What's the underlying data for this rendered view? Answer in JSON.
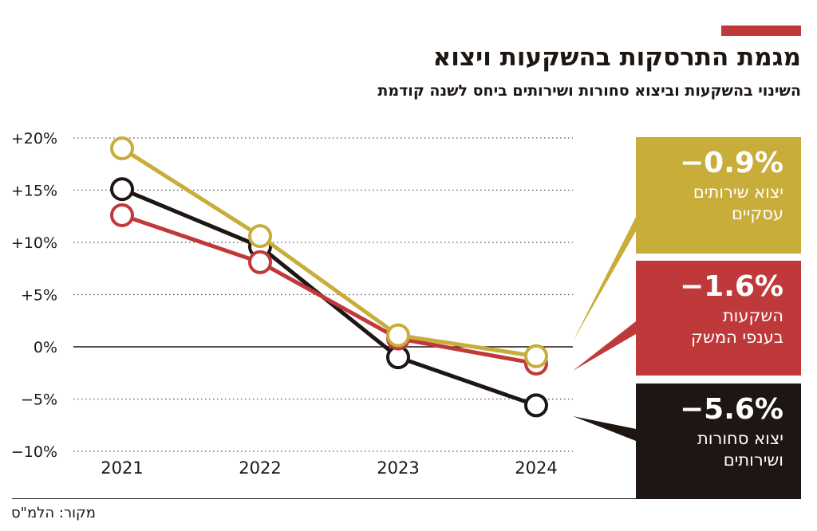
{
  "header": {
    "title": "מגמת התרסקות בהשקעות ויצוא",
    "subtitle": "השינוי בהשקעות וביצוא סחורות ושירותים ביחס לשנה קודמת"
  },
  "boxes": {
    "services": {
      "value": "−0.9%",
      "label": "יצוא שירותים\nעסקיים"
    },
    "investment": {
      "value": "−1.6%",
      "label": "השקעות\nבענפי המשק"
    },
    "exports": {
      "value": "−5.6%",
      "label": "יצוא סחורות\nושירותים"
    }
  },
  "source": "מקור: הלמ\"ס",
  "colors": {
    "gold": "#c9ad3a",
    "red": "#c0393a",
    "black": "#1d1612",
    "accent": "#c0393a"
  },
  "chart_data": {
    "type": "line",
    "title": "מגמת התרסקות בהשקעות ויצוא",
    "subtitle": "השינוי בהשקעות וביצוא סחורות ושירותים ביחס לשנה קודמת",
    "categories": [
      "2021",
      "2022",
      "2023",
      "2024"
    ],
    "y_ticks": [
      {
        "value": 20,
        "label": "+20%"
      },
      {
        "value": 15,
        "label": "+15%"
      },
      {
        "value": 10,
        "label": "+10%"
      },
      {
        "value": 5,
        "label": "+5%"
      },
      {
        "value": 0,
        "label": "0%"
      },
      {
        "value": -5,
        "label": "−5%"
      },
      {
        "value": -10,
        "label": "−10%"
      }
    ],
    "ylim": [
      -10,
      20
    ],
    "grid": "dotted horizontal",
    "series": [
      {
        "name": "יצוא שירותים עסקיים",
        "color": "#c9ad3a",
        "values": [
          19.0,
          10.6,
          1.1,
          -0.9
        ]
      },
      {
        "name": "השקעות בענפי המשק",
        "color": "#c0393a",
        "values": [
          12.6,
          8.1,
          0.8,
          -1.6
        ]
      },
      {
        "name": "יצוא סחורות ושירותים",
        "color": "#1d1612",
        "values": [
          15.1,
          9.6,
          -1.0,
          -5.6
        ]
      }
    ]
  }
}
